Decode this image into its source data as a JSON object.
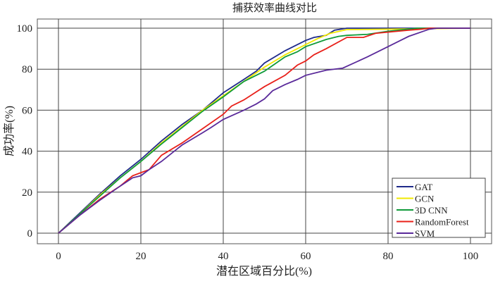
{
  "chart_data": {
    "type": "line",
    "title": "捕获效率曲线对比",
    "xlabel": "潜在区域百分比(%)",
    "ylabel": "成功率(%)",
    "xlim": [
      0,
      100
    ],
    "ylim": [
      0,
      100
    ],
    "xticks": [
      "0",
      "20",
      "40",
      "60",
      "80",
      "100"
    ],
    "yticks": [
      "0",
      "20",
      "40",
      "60",
      "80",
      "100"
    ],
    "grid": true,
    "legend_position": "bottom-right",
    "series": [
      {
        "name": "GAT",
        "color": "#1f2a8a",
        "x": [
          0,
          5,
          10,
          15,
          20,
          25,
          30,
          35,
          40,
          45,
          48,
          50,
          55,
          60,
          62,
          65,
          67,
          70,
          100
        ],
        "y": [
          0,
          9.5,
          19,
          28,
          36,
          45,
          53,
          60,
          68.5,
          75,
          79,
          83,
          89,
          94,
          95.5,
          96.5,
          99,
          100,
          100
        ]
      },
      {
        "name": "GCN",
        "color": "#f0e800",
        "x": [
          0,
          5,
          10,
          15,
          20,
          25,
          30,
          35,
          40,
          45,
          50,
          55,
          60,
          63,
          66,
          70,
          80,
          100
        ],
        "y": [
          0,
          9,
          18.5,
          27,
          35,
          44,
          52,
          60,
          67,
          74,
          81,
          87,
          92,
          95,
          97.5,
          99.3,
          99.5,
          100
        ]
      },
      {
        "name": "3D CNN",
        "color": "#109a3a",
        "x": [
          0,
          5,
          10,
          15,
          20,
          25,
          30,
          35,
          40,
          45,
          50,
          55,
          58,
          60,
          65,
          68,
          70,
          75,
          80,
          87,
          100
        ],
        "y": [
          0,
          9,
          18,
          27,
          35,
          43.5,
          51.5,
          59.5,
          66.5,
          74,
          79,
          86,
          88.5,
          91,
          94.5,
          96,
          96.5,
          97,
          98.5,
          100,
          100
        ]
      },
      {
        "name": "RandomForest",
        "color": "#e8201a",
        "x": [
          0,
          5,
          10,
          15,
          18,
          20,
          22,
          25,
          30,
          35,
          40,
          42,
          45,
          50,
          55,
          58,
          60,
          62,
          65,
          70,
          74,
          77,
          85,
          88,
          90,
          100
        ],
        "y": [
          0,
          8.5,
          16.5,
          23,
          28,
          29.5,
          31,
          38,
          44,
          51,
          58,
          62,
          65,
          71.5,
          77,
          82,
          84,
          87,
          90,
          95.5,
          95.5,
          97.5,
          99,
          99.5,
          100,
          100
        ]
      },
      {
        "name": "SVM",
        "color": "#5a2a9a",
        "x": [
          0,
          5,
          10,
          15,
          18,
          20,
          22,
          25,
          30,
          35,
          37,
          40,
          45,
          48,
          50,
          52,
          55,
          58,
          60,
          65,
          69,
          75,
          80,
          83,
          85,
          90,
          92,
          100
        ],
        "y": [
          0,
          8.5,
          16,
          23,
          27,
          28,
          31,
          35,
          43,
          49,
          51.5,
          55.5,
          60,
          63,
          65.5,
          69.5,
          72.5,
          75,
          77,
          79.5,
          80.5,
          86,
          91,
          94,
          96,
          99.5,
          100,
          100
        ]
      }
    ]
  }
}
